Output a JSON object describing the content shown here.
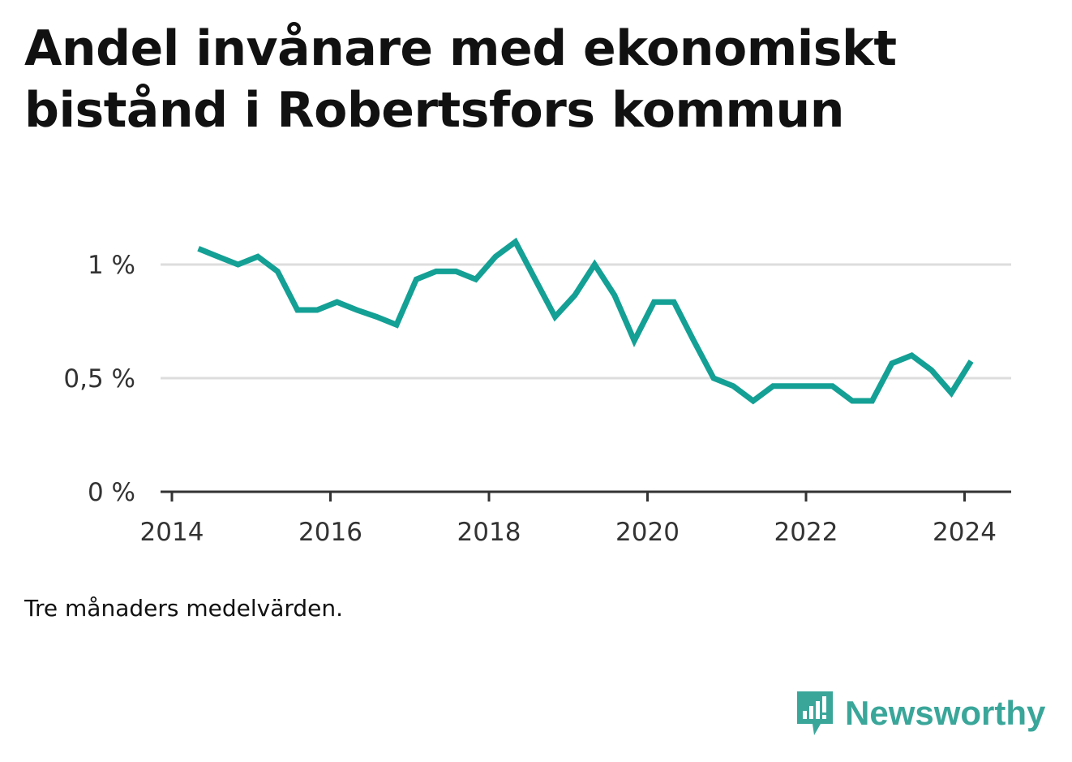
{
  "title": "Andel invånare med ekonomiskt bistånd i Robertsfors kommun",
  "note": "Tre månaders medelvärden.",
  "brand": {
    "name": "Newsworthy",
    "icon": "newsworthy-logo-icon",
    "color": "#3aa69a"
  },
  "chart_data": {
    "type": "line",
    "title": "Andel invånare med ekonomiskt bistånd i Robertsfors kommun",
    "xlabel": "",
    "ylabel": "",
    "xlim": [
      2014,
      2024.3
    ],
    "ylim": [
      0,
      1.15
    ],
    "grid": true,
    "line_color": "#14a095",
    "x_ticks": [
      2014,
      2016,
      2018,
      2020,
      2022,
      2024
    ],
    "x_tick_labels": [
      "2014",
      "2016",
      "2018",
      "2020",
      "2022",
      "2024"
    ],
    "y_ticks": [
      0,
      0.5,
      1
    ],
    "y_tick_labels": [
      "0 %",
      "0,5 %",
      "1 %"
    ],
    "series": [
      {
        "x": [
          "2014-05",
          "2014-08",
          "2014-11",
          "2015-02",
          "2015-05",
          "2015-08",
          "2015-11",
          "2016-02",
          "2016-05",
          "2016-08",
          "2016-11",
          "2017-02",
          "2017-05",
          "2017-08",
          "2017-11",
          "2018-02",
          "2018-05",
          "2018-08",
          "2018-11",
          "2019-02",
          "2019-05",
          "2019-08",
          "2019-11",
          "2020-02",
          "2020-05",
          "2020-08",
          "2020-11",
          "2021-02",
          "2021-05",
          "2021-08",
          "2021-11",
          "2022-02",
          "2022-05",
          "2022-08",
          "2022-11",
          "2023-02",
          "2023-05",
          "2023-08",
          "2023-11",
          "2024-02"
        ],
        "values": [
          1.07,
          1.035,
          1.0,
          1.035,
          0.97,
          0.8,
          0.8,
          0.835,
          0.8,
          0.77,
          0.735,
          0.935,
          0.97,
          0.97,
          0.935,
          1.035,
          1.1,
          0.935,
          0.77,
          0.865,
          1.0,
          0.865,
          0.665,
          0.835,
          0.835,
          0.665,
          0.5,
          0.465,
          0.4,
          0.465,
          0.465,
          0.465,
          0.465,
          0.4,
          0.4,
          0.565,
          0.6,
          0.535,
          0.435,
          0.575
        ]
      }
    ]
  }
}
